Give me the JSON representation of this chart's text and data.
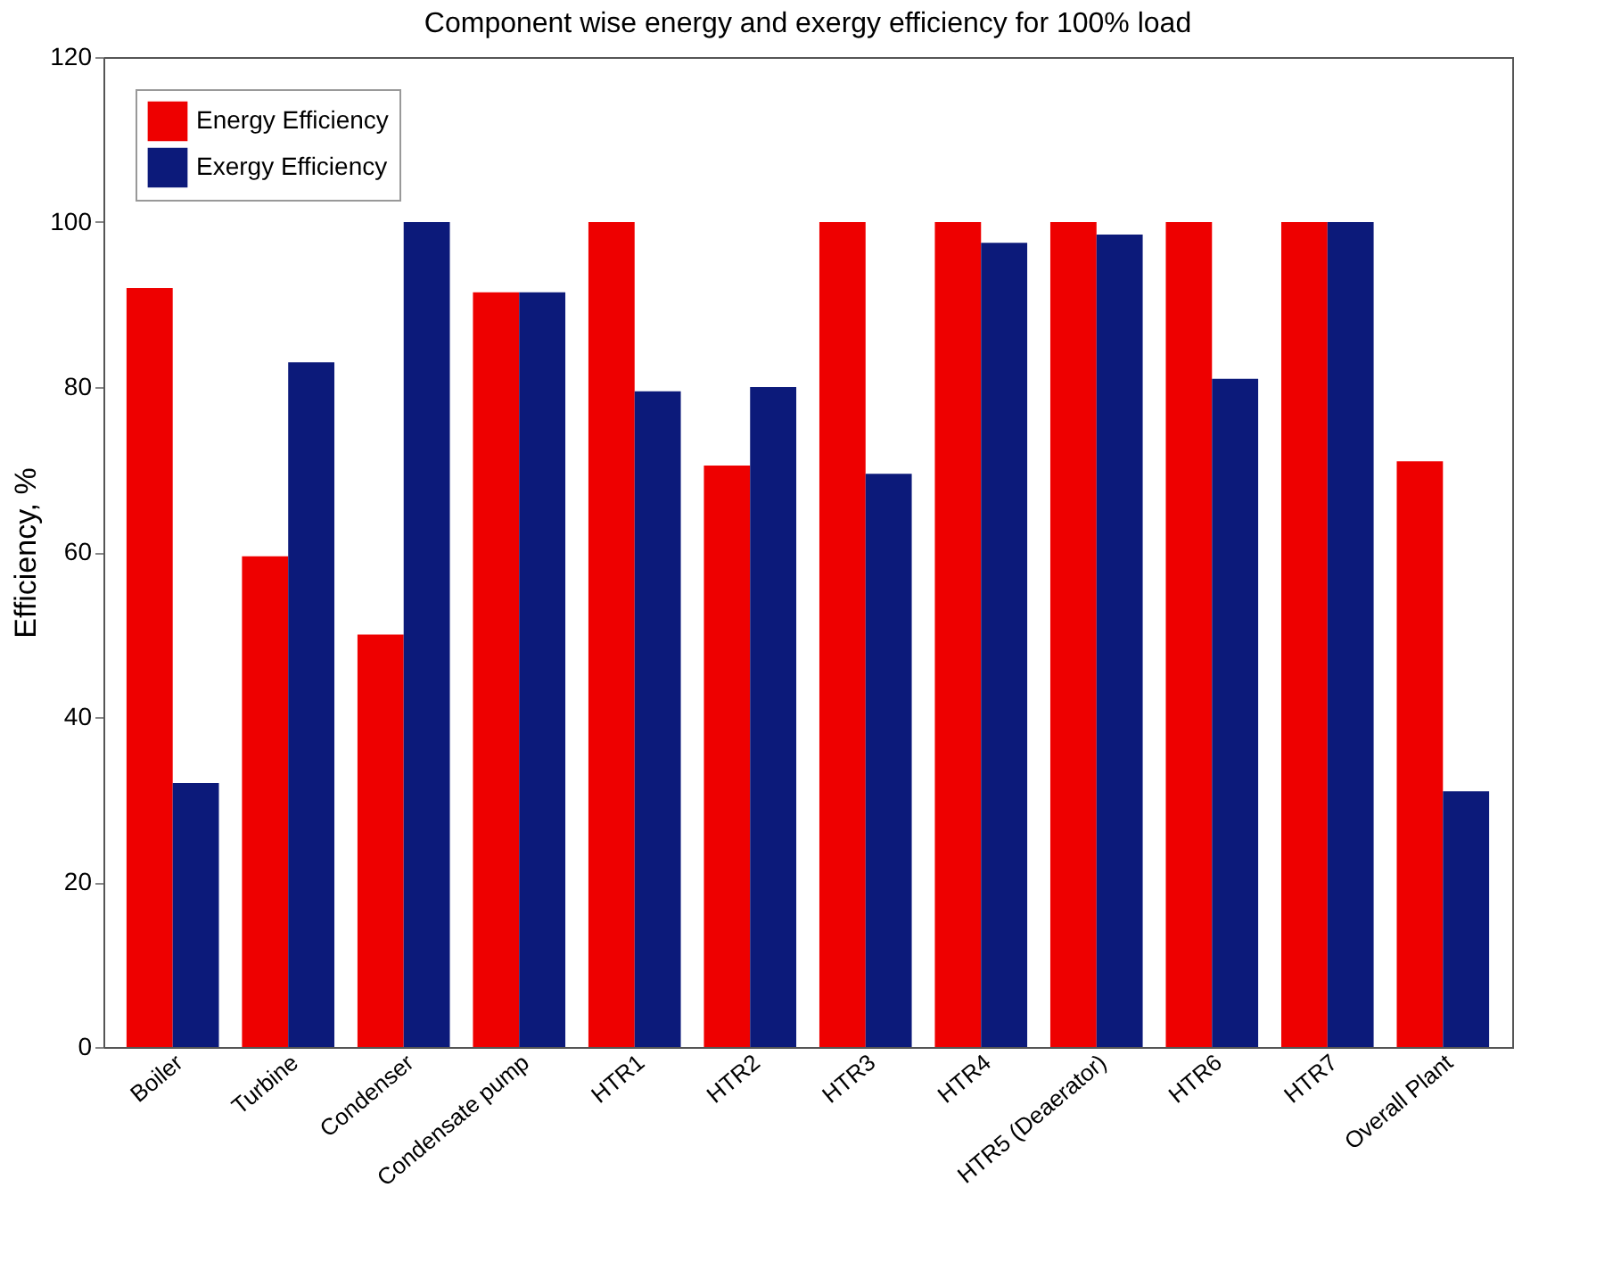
{
  "chart_data": {
    "type": "bar",
    "title": "Component wise energy and exergy efficiency for 100% load",
    "ylabel": "Efficiency, %",
    "categories": [
      "Boiler",
      "Turbine",
      "Condenser",
      "Condensate pump",
      "HTR1",
      "HTR2",
      "HTR3",
      "HTR4",
      "HTR5 (Deaerator)",
      "HTR6",
      "HTR7",
      "Overall Plant"
    ],
    "series": [
      {
        "name": "Energy Efficiency",
        "color": "#ee0000",
        "values": [
          92,
          59.5,
          50,
          91.5,
          100,
          70.5,
          100,
          100,
          100,
          100,
          100,
          71
        ]
      },
      {
        "name": "Exergy Efficiency",
        "color": "#0c1a7a",
        "values": [
          32,
          83,
          100,
          91.5,
          79.5,
          80,
          69.5,
          97.5,
          98.5,
          81,
          100,
          31
        ]
      }
    ],
    "ylim": [
      0,
      120
    ],
    "yticks": [
      0,
      20,
      40,
      60,
      80,
      100,
      120
    ],
    "grid": false,
    "legend": "top left"
  }
}
